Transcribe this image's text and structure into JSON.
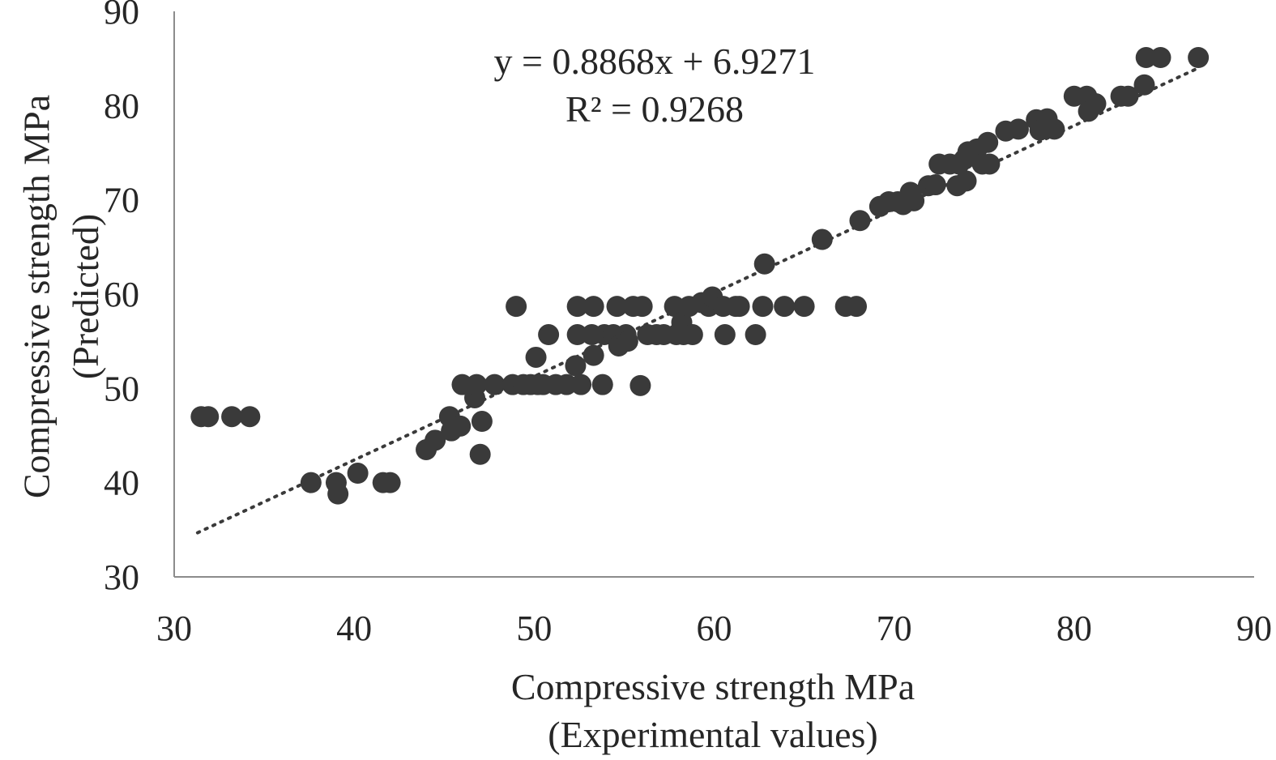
{
  "chart_data": {
    "type": "scatter",
    "title": "",
    "xlabel": [
      "Compressive strength MPa",
      "(Experimental values)"
    ],
    "ylabel": [
      "Compressive strength MPa",
      "(Predicted)"
    ],
    "xlim": [
      30,
      90
    ],
    "ylim": [
      30,
      90
    ],
    "xticks": [
      "30",
      "40",
      "50",
      "60",
      "70",
      "80",
      "90"
    ],
    "yticks": [
      "30",
      "40",
      "50",
      "60",
      "70",
      "80",
      "90"
    ],
    "grid": false,
    "trendline": {
      "type": "linear",
      "slope": 0.8868,
      "intercept": 6.9271,
      "x_range": [
        31.3,
        86.9
      ],
      "equation": "y = 0.8868x + 6.9271",
      "r_squared": "R² = 0.9268"
    },
    "colors": {
      "point": "#3a3a3a",
      "trendline": "#3a3a3a",
      "axis": "#8c8c8c"
    },
    "points": [
      [
        31.5,
        47.0
      ],
      [
        31.9,
        47.0
      ],
      [
        33.2,
        47.0
      ],
      [
        34.2,
        47.0
      ],
      [
        37.6,
        40.0
      ],
      [
        39.0,
        40.0
      ],
      [
        39.1,
        38.8
      ],
      [
        40.2,
        41.0
      ],
      [
        41.6,
        40.0
      ],
      [
        42.0,
        40.0
      ],
      [
        44.0,
        43.5
      ],
      [
        44.5,
        44.5
      ],
      [
        45.3,
        47.0
      ],
      [
        45.4,
        45.5
      ],
      [
        45.9,
        46.0
      ],
      [
        46.0,
        50.4
      ],
      [
        46.7,
        49.0
      ],
      [
        46.8,
        50.4
      ],
      [
        47.0,
        43.0
      ],
      [
        47.1,
        46.5
      ],
      [
        47.8,
        50.4
      ],
      [
        48.8,
        50.4
      ],
      [
        49.0,
        58.7
      ],
      [
        49.4,
        50.4
      ],
      [
        49.8,
        50.4
      ],
      [
        50.1,
        53.3
      ],
      [
        50.2,
        50.4
      ],
      [
        50.5,
        50.4
      ],
      [
        50.8,
        55.7
      ],
      [
        51.2,
        50.4
      ],
      [
        51.8,
        50.4
      ],
      [
        52.3,
        52.4
      ],
      [
        52.4,
        55.7
      ],
      [
        52.4,
        58.7
      ],
      [
        52.6,
        50.4
      ],
      [
        53.2,
        55.7
      ],
      [
        53.3,
        58.7
      ],
      [
        53.3,
        53.5
      ],
      [
        53.8,
        50.4
      ],
      [
        53.9,
        55.7
      ],
      [
        54.4,
        55.7
      ],
      [
        54.6,
        58.7
      ],
      [
        54.7,
        54.5
      ],
      [
        55.1,
        55.7
      ],
      [
        55.2,
        55.0
      ],
      [
        55.5,
        58.7
      ],
      [
        55.9,
        50.3
      ],
      [
        56.0,
        58.7
      ],
      [
        56.3,
        55.7
      ],
      [
        56.8,
        55.7
      ],
      [
        57.2,
        55.7
      ],
      [
        57.8,
        58.7
      ],
      [
        57.9,
        55.7
      ],
      [
        58.2,
        57.0
      ],
      [
        58.3,
        55.7
      ],
      [
        58.6,
        58.7
      ],
      [
        58.8,
        55.7
      ],
      [
        59.3,
        59.1
      ],
      [
        59.7,
        58.7
      ],
      [
        59.9,
        59.7
      ],
      [
        60.5,
        58.7
      ],
      [
        60.6,
        55.7
      ],
      [
        61.2,
        58.7
      ],
      [
        61.4,
        58.7
      ],
      [
        62.3,
        55.7
      ],
      [
        62.7,
        58.7
      ],
      [
        62.8,
        63.2
      ],
      [
        63.9,
        58.7
      ],
      [
        65.0,
        58.7
      ],
      [
        66.0,
        65.8
      ],
      [
        67.3,
        58.7
      ],
      [
        67.9,
        58.7
      ],
      [
        68.1,
        67.8
      ],
      [
        69.2,
        69.3
      ],
      [
        69.7,
        69.8
      ],
      [
        70.2,
        69.8
      ],
      [
        70.5,
        69.5
      ],
      [
        70.9,
        70.8
      ],
      [
        71.1,
        69.9
      ],
      [
        71.9,
        71.5
      ],
      [
        72.3,
        71.6
      ],
      [
        72.5,
        73.8
      ],
      [
        73.1,
        73.8
      ],
      [
        73.5,
        71.5
      ],
      [
        73.6,
        73.8
      ],
      [
        73.9,
        74.3
      ],
      [
        74.0,
        72.0
      ],
      [
        74.1,
        75.1
      ],
      [
        74.6,
        75.4
      ],
      [
        74.9,
        73.8
      ],
      [
        75.2,
        76.1
      ],
      [
        75.3,
        73.8
      ],
      [
        76.2,
        77.3
      ],
      [
        76.9,
        77.5
      ],
      [
        77.9,
        78.5
      ],
      [
        78.1,
        77.4
      ],
      [
        78.5,
        78.6
      ],
      [
        78.9,
        77.5
      ],
      [
        80.0,
        81.0
      ],
      [
        80.7,
        81.0
      ],
      [
        80.8,
        79.4
      ],
      [
        81.2,
        80.2
      ],
      [
        82.6,
        81.0
      ],
      [
        83.0,
        81.0
      ],
      [
        83.9,
        82.2
      ],
      [
        84.0,
        85.1
      ],
      [
        84.8,
        85.1
      ],
      [
        86.9,
        85.1
      ]
    ]
  }
}
